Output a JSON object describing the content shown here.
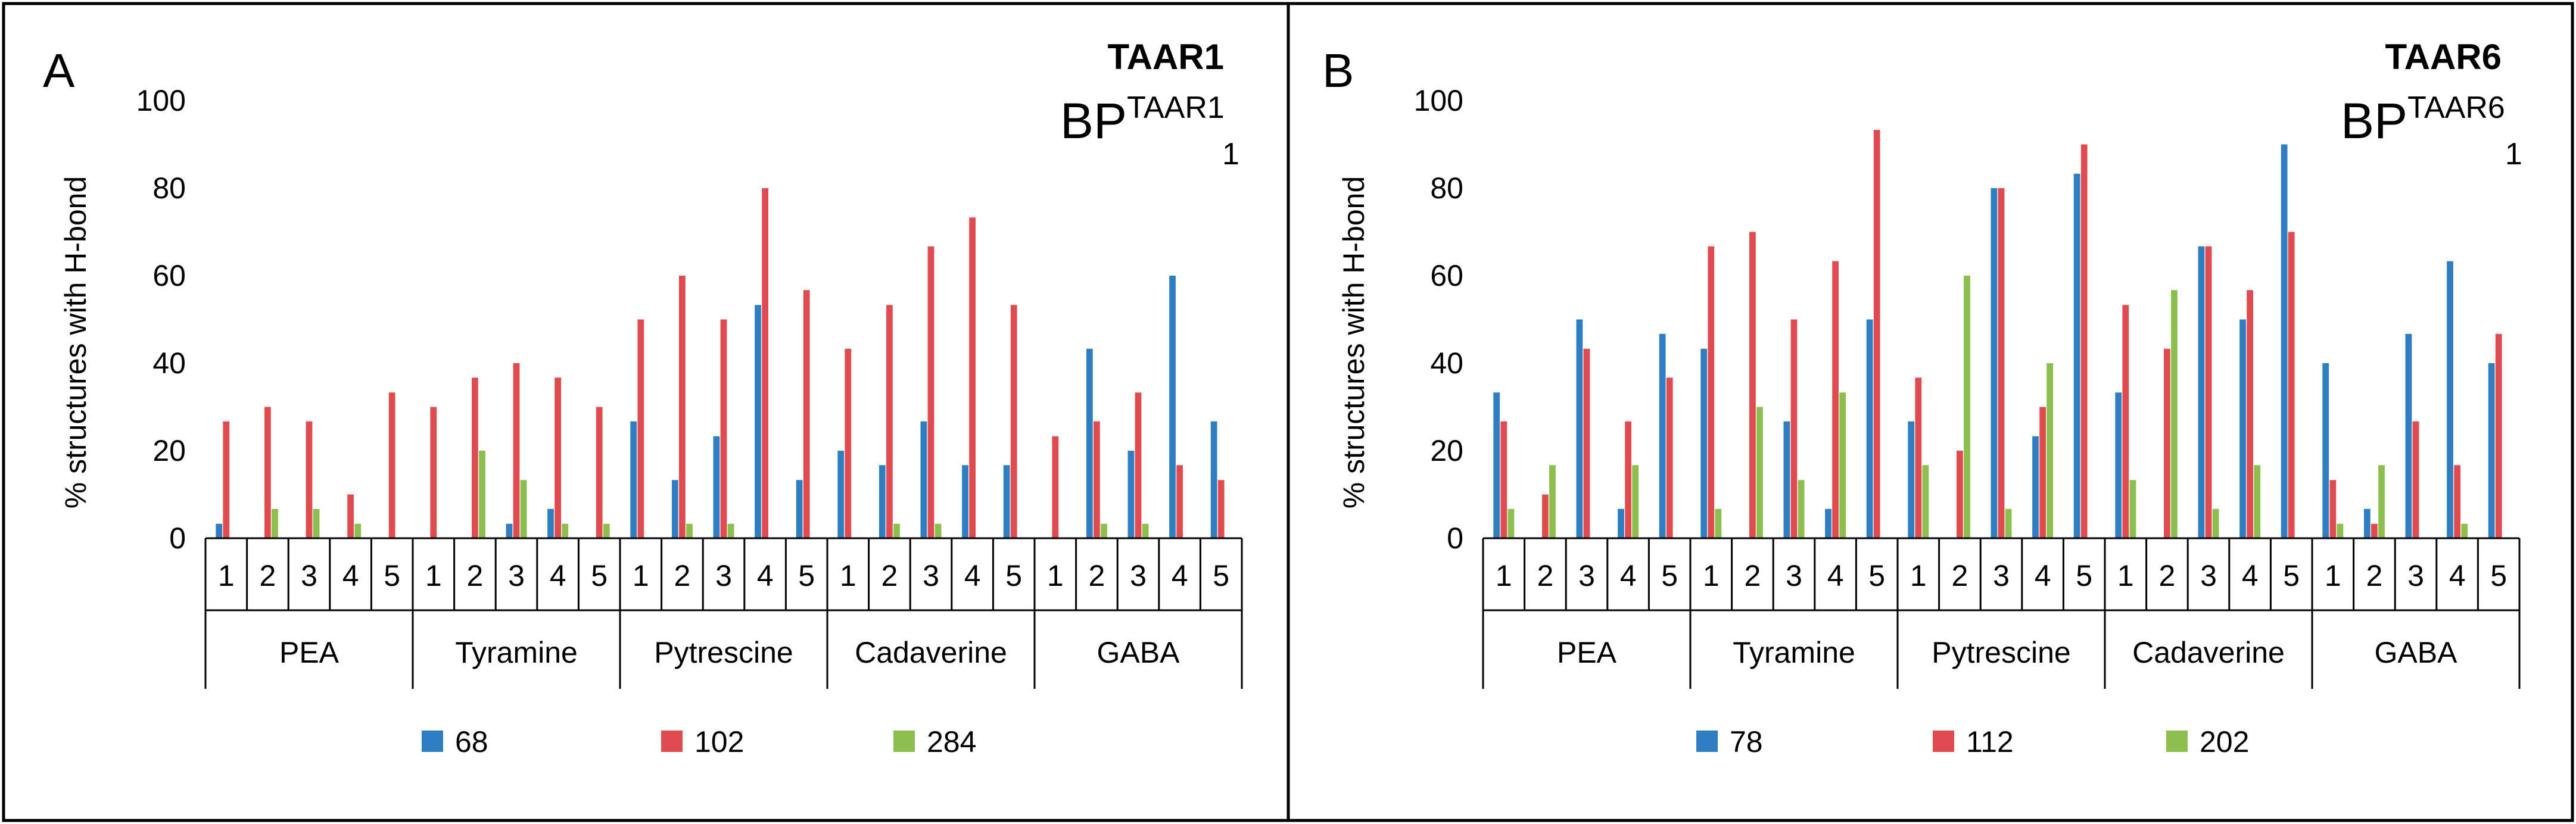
{
  "colors": {
    "s1": "#2E7EC1",
    "s2": "#E04B4F",
    "s3": "#8CBF4E",
    "axis": "#000000",
    "border": "#000000"
  },
  "chart_data": [
    {
      "type": "bar",
      "panel_letter": "A",
      "title": "TAAR1",
      "subtitle": {
        "base": "BP",
        "sup": "TAAR1",
        "sub": "1"
      },
      "ylabel": "% structures with H-bond",
      "ylim": [
        0,
        100
      ],
      "yticks": [
        "0",
        "20",
        "40",
        "60",
        "80",
        "100"
      ],
      "groups": [
        "PEA",
        "Tyramine",
        "Pytrescine",
        "Cadaverine",
        "GABA"
      ],
      "subcategories": [
        "1",
        "2",
        "3",
        "4",
        "5"
      ],
      "legend_position": "bottom",
      "series": [
        {
          "name": "68",
          "values": [
            3.3,
            0,
            0,
            0,
            0,
            0,
            0,
            3.3,
            6.7,
            0,
            26.7,
            13.3,
            23.3,
            53.3,
            13.3,
            20,
            16.7,
            26.7,
            16.7,
            16.7,
            0,
            43.3,
            20,
            60,
            26.7
          ]
        },
        {
          "name": "102",
          "values": [
            26.7,
            30,
            26.7,
            10,
            33.3,
            30,
            36.7,
            40,
            36.7,
            30,
            50,
            60,
            50,
            80,
            56.7,
            43.3,
            53.3,
            66.7,
            73.3,
            53.3,
            23.3,
            26.7,
            33.3,
            16.7,
            13.3
          ]
        },
        {
          "name": "284",
          "values": [
            0,
            6.7,
            6.7,
            3.3,
            0,
            0,
            20,
            13.3,
            3.3,
            3.3,
            0,
            3.3,
            3.3,
            0,
            0,
            0,
            3.3,
            3.3,
            0,
            0,
            0,
            3.3,
            3.3,
            0,
            0
          ]
        }
      ]
    },
    {
      "type": "bar",
      "panel_letter": "B",
      "title": "TAAR6",
      "subtitle": {
        "base": "BP",
        "sup": "TAAR6",
        "sub": "1"
      },
      "ylabel": "% structures with H-bond",
      "ylim": [
        0,
        100
      ],
      "yticks": [
        "0",
        "20",
        "40",
        "60",
        "80",
        "100"
      ],
      "groups": [
        "PEA",
        "Tyramine",
        "Pytrescine",
        "Cadaverine",
        "GABA"
      ],
      "subcategories": [
        "1",
        "2",
        "3",
        "4",
        "5"
      ],
      "legend_position": "bottom",
      "series": [
        {
          "name": "78",
          "values": [
            33.3,
            0,
            50,
            6.7,
            46.7,
            43.3,
            0,
            26.7,
            6.7,
            50,
            26.7,
            0,
            80,
            23.3,
            83.3,
            33.3,
            0,
            66.7,
            50,
            90,
            40,
            6.7,
            46.7,
            63.3,
            40
          ]
        },
        {
          "name": "112",
          "values": [
            26.7,
            10,
            43.3,
            26.7,
            36.7,
            66.7,
            70,
            50,
            63.3,
            93.3,
            36.7,
            20,
            80,
            30,
            90,
            53.3,
            43.3,
            66.7,
            56.7,
            70,
            13.3,
            3.3,
            26.7,
            16.7,
            46.7
          ]
        },
        {
          "name": "202",
          "values": [
            6.7,
            16.7,
            0,
            16.7,
            0,
            6.7,
            30,
            13.3,
            33.3,
            0,
            16.7,
            60,
            6.7,
            40,
            0,
            13.3,
            56.7,
            6.7,
            16.7,
            0,
            3.3,
            16.7,
            0,
            3.3,
            0
          ]
        }
      ]
    }
  ]
}
